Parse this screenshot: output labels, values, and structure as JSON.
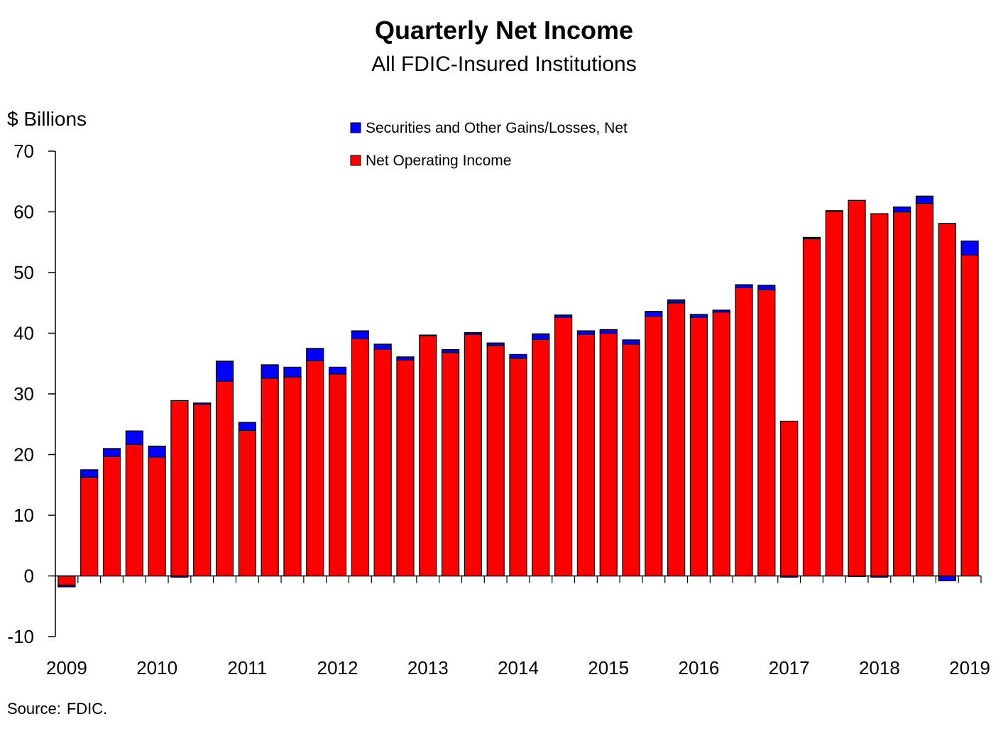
{
  "chart_data": {
    "type": "bar",
    "stacked": true,
    "title": "Quarterly Net Income",
    "subtitle": "All FDIC-Insured Institutions",
    "ylabel": "$ Billions",
    "ylim": [
      -10,
      70
    ],
    "yticks": [
      70,
      60,
      50,
      40,
      30,
      20,
      10,
      0,
      -10
    ],
    "xtick_labels": [
      "2009",
      "2010",
      "2011",
      "2012",
      "2013",
      "2014",
      "2015",
      "2016",
      "2017",
      "2018",
      "2019"
    ],
    "legend_position": "top-center",
    "categories": [
      "2009 Q1",
      "2009 Q2",
      "2009 Q3",
      "2009 Q4",
      "2010 Q1",
      "2010 Q2",
      "2010 Q3",
      "2010 Q4",
      "2011 Q1",
      "2011 Q2",
      "2011 Q3",
      "2011 Q4",
      "2012 Q1",
      "2012 Q2",
      "2012 Q3",
      "2012 Q4",
      "2013 Q1",
      "2013 Q2",
      "2013 Q3",
      "2013 Q4",
      "2014 Q1",
      "2014 Q2",
      "2014 Q3",
      "2014 Q4",
      "2015 Q1",
      "2015 Q2",
      "2015 Q3",
      "2015 Q4",
      "2016 Q1",
      "2016 Q2",
      "2016 Q3",
      "2016 Q4",
      "2017 Q1",
      "2017 Q2",
      "2017 Q3",
      "2017 Q4",
      "2018 Q1",
      "2018 Q2",
      "2018 Q3",
      "2018 Q4",
      "2019 Q1"
    ],
    "series": [
      {
        "name": "Net Operating Income",
        "color": "#ff0000",
        "values": [
          -1.5,
          16.3,
          19.7,
          21.7,
          19.6,
          28.9,
          28.3,
          32.1,
          24.0,
          32.6,
          32.8,
          35.5,
          33.3,
          39.1,
          37.4,
          35.6,
          39.6,
          36.8,
          39.8,
          38.0,
          35.9,
          39.0,
          42.6,
          39.8,
          40.0,
          38.2,
          42.8,
          45.0,
          42.6,
          43.5,
          47.5,
          47.2,
          25.5,
          55.6,
          60.1,
          61.9,
          59.7,
          60.0,
          61.4,
          58.1,
          52.9
        ]
      },
      {
        "name": "Securities and Other Gains/Losses, Net",
        "color": "#0000ff",
        "values": [
          -0.3,
          1.2,
          1.3,
          2.2,
          1.8,
          -0.2,
          0.2,
          3.3,
          1.3,
          2.2,
          1.6,
          2.0,
          1.1,
          1.3,
          0.8,
          0.5,
          0.1,
          0.5,
          0.3,
          0.4,
          0.6,
          0.9,
          0.4,
          0.6,
          0.6,
          0.7,
          0.8,
          0.5,
          0.5,
          0.3,
          0.5,
          0.7,
          -0.2,
          0.2,
          0.1,
          -0.1,
          -0.2,
          0.8,
          1.2,
          -0.8,
          2.3
        ]
      }
    ]
  },
  "source": {
    "label": "Source:",
    "value": "FDIC."
  }
}
